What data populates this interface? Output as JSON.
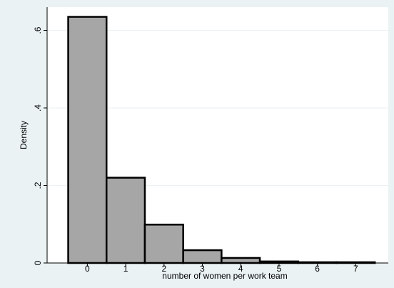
{
  "chart_data": {
    "type": "bar",
    "title": "",
    "xlabel": "number of women per work team",
    "ylabel": "Density",
    "categories": [
      "0",
      "1",
      "2",
      "3",
      "4",
      "5",
      "6",
      "7"
    ],
    "values": [
      0.635,
      0.22,
      0.099,
      0.033,
      0.013,
      0.004,
      0.002,
      0.002
    ],
    "xlim": [
      -1.05,
      7.85
    ],
    "ylim": [
      0,
      0.66
    ],
    "x_ticks": [
      0,
      1,
      2,
      3,
      4,
      5,
      6,
      7
    ],
    "y_ticks": [
      0,
      0.2,
      0.4,
      0.6
    ],
    "y_tick_labels": [
      "0",
      ".2",
      ".4",
      ".6"
    ],
    "grid": true,
    "legend": "none",
    "colors": {
      "outer_background": "#eaf2f3",
      "plot_background": "#ffffff",
      "bar_fill": "#a6a6a6",
      "bar_edge": "#000000",
      "gridline": "#eaf2f3"
    }
  }
}
